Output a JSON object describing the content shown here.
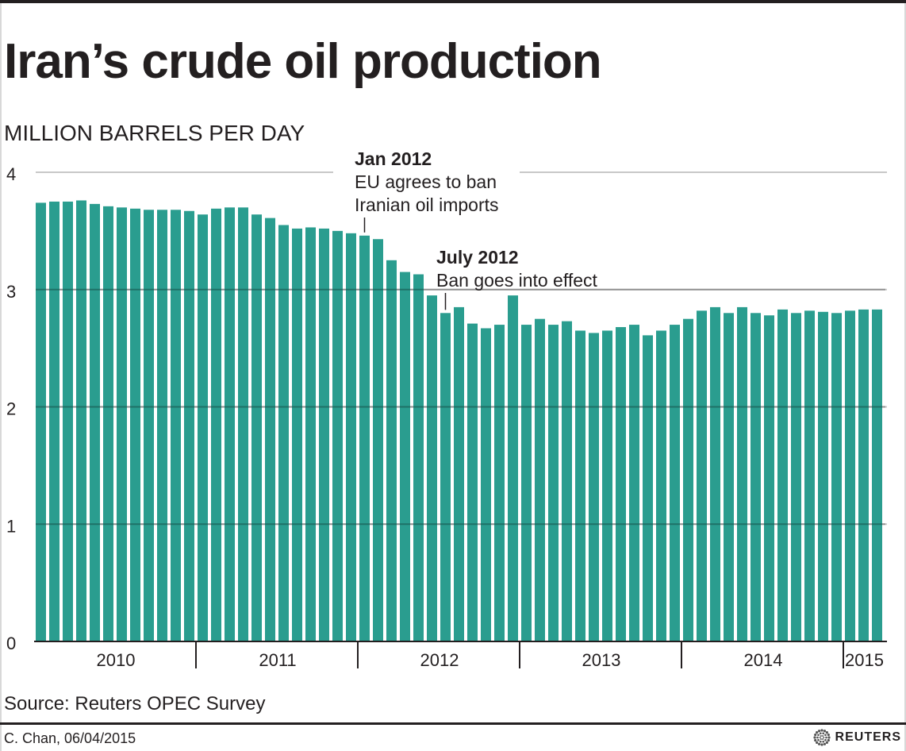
{
  "title": "Iran’s crude oil production",
  "units": "MILLION BARRELS PER DAY",
  "source": "Source: Reuters OPEC Survey",
  "byline": "C. Chan, 06/04/2015",
  "logo": "REUTERS",
  "colors": {
    "bar": "#2a9d8f",
    "grid": "#c8c8c8",
    "text": "#231f20"
  },
  "chart_data": {
    "type": "bar",
    "title": "Iran’s crude oil production",
    "ylabel": "MILLION BARRELS PER DAY",
    "ylim": [
      0,
      4
    ],
    "yticks": [
      0,
      1,
      2,
      3,
      4
    ],
    "grid": true,
    "year_labels": [
      "2010",
      "2011",
      "2012",
      "2013",
      "2014",
      "2015"
    ],
    "categories": [
      "Jan 2010",
      "Feb 2010",
      "Mar 2010",
      "Apr 2010",
      "May 2010",
      "Jun 2010",
      "Jul 2010",
      "Aug 2010",
      "Sep 2010",
      "Oct 2010",
      "Nov 2010",
      "Dec 2010",
      "Jan 2011",
      "Feb 2011",
      "Mar 2011",
      "Apr 2011",
      "May 2011",
      "Jun 2011",
      "Jul 2011",
      "Aug 2011",
      "Sep 2011",
      "Oct 2011",
      "Nov 2011",
      "Dec 2011",
      "Jan 2012",
      "Feb 2012",
      "Mar 2012",
      "Apr 2012",
      "May 2012",
      "Jun 2012",
      "Jul 2012",
      "Aug 2012",
      "Sep 2012",
      "Oct 2012",
      "Nov 2012",
      "Dec 2012",
      "Jan 2013",
      "Feb 2013",
      "Mar 2013",
      "Apr 2013",
      "May 2013",
      "Jun 2013",
      "Jul 2013",
      "Aug 2013",
      "Sep 2013",
      "Oct 2013",
      "Nov 2013",
      "Dec 2013",
      "Jan 2014",
      "Feb 2014",
      "Mar 2014",
      "Apr 2014",
      "May 2014",
      "Jun 2014",
      "Jul 2014",
      "Aug 2014",
      "Sep 2014",
      "Oct 2014",
      "Nov 2014",
      "Dec 2014",
      "Jan 2015",
      "Feb 2015",
      "Mar 2015"
    ],
    "values": [
      3.74,
      3.75,
      3.75,
      3.76,
      3.73,
      3.71,
      3.7,
      3.69,
      3.68,
      3.68,
      3.68,
      3.67,
      3.64,
      3.69,
      3.7,
      3.7,
      3.64,
      3.61,
      3.55,
      3.52,
      3.53,
      3.52,
      3.5,
      3.48,
      3.46,
      3.43,
      3.25,
      3.15,
      3.13,
      2.95,
      2.8,
      2.85,
      2.71,
      2.67,
      2.7,
      2.95,
      2.7,
      2.75,
      2.7,
      2.73,
      2.65,
      2.63,
      2.65,
      2.68,
      2.7,
      2.61,
      2.65,
      2.7,
      2.75,
      2.82,
      2.85,
      2.8,
      2.85,
      2.8,
      2.78,
      2.83,
      2.8,
      2.82,
      2.81,
      2.8,
      2.82,
      2.83,
      2.83
    ],
    "annotations": [
      {
        "category": "Jan 2012",
        "heading": "Jan 2012",
        "lines": [
          "EU agrees to ban",
          "Iranian oil imports"
        ]
      },
      {
        "category": "Jul 2012",
        "heading": "July 2012",
        "lines": [
          "Ban goes into effect"
        ]
      }
    ]
  }
}
